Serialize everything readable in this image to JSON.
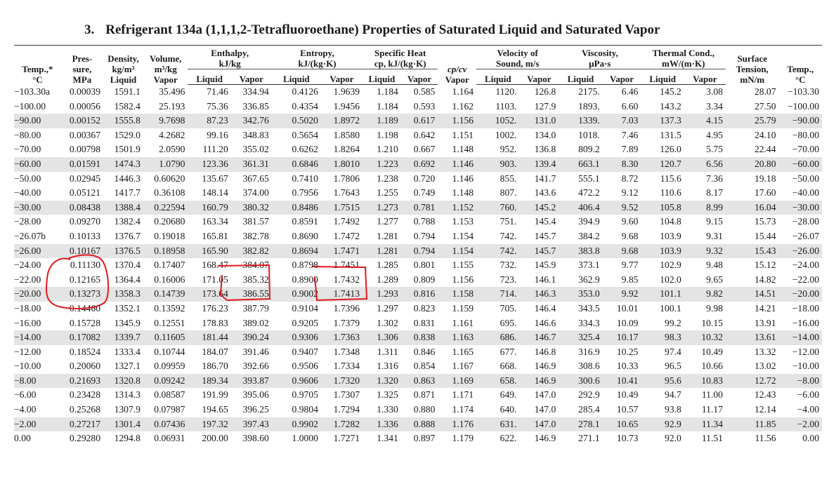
{
  "title": {
    "mark": "3.",
    "text": "Refrigerant 134a (1,1,1,2-Tetrafluoroethane) Properties of Saturated Liquid and Saturated Vapor"
  },
  "header": {
    "temp": [
      "Temp.,*",
      "°C"
    ],
    "pressure": [
      "Pres-",
      "sure,",
      "MPa"
    ],
    "density": [
      "Density,",
      "kg/m³",
      "Liquid"
    ],
    "volume": [
      "Volume,",
      "m³/kg",
      "Vapor"
    ],
    "enthalpy": [
      "Enthalpy,",
      "kJ/kg"
    ],
    "entropy": [
      "Entropy,",
      "kJ/(kg·K)"
    ],
    "specific_heat": [
      "Specific Heat",
      "cp, kJ/(kg·K)"
    ],
    "cp_cv": [
      "cp/cv",
      "Vapor"
    ],
    "velocity": [
      "Velocity of",
      "Sound, m/s"
    ],
    "viscosity": [
      "Viscosity,",
      "μPa·s"
    ],
    "conductivity": [
      "Thermal Cond.,",
      "mW/(m·K)"
    ],
    "surface_tension": [
      "Surface",
      "Tension,",
      "mN/m"
    ],
    "temp_right": [
      "Temp.,",
      "°C"
    ],
    "liquid": "Liquid",
    "vapor": "Vapor"
  },
  "rows": [
    [
      "−103.30a",
      "0.00039",
      "1591.1",
      "35.496",
      "71.46",
      "334.94",
      "0.4126",
      "1.9639",
      "1.184",
      "0.585",
      "1.164",
      "1120.",
      "126.8",
      "2175.",
      "6.46",
      "145.2",
      "3.08",
      "28.07",
      "−103.30"
    ],
    [
      "−100.00",
      "0.00056",
      "1582.4",
      "25.193",
      "75.36",
      "336.85",
      "0.4354",
      "1.9456",
      "1.184",
      "0.593",
      "1.162",
      "1103.",
      "127.9",
      "1893.",
      "6.60",
      "143.2",
      "3.34",
      "27.50",
      "−100.00"
    ],
    [
      "−90.00",
      "0.00152",
      "1555.8",
      "9.7698",
      "87.23",
      "342.76",
      "0.5020",
      "1.8972",
      "1.189",
      "0.617",
      "1.156",
      "1052.",
      "131.0",
      "1339.",
      "7.03",
      "137.3",
      "4.15",
      "25.79",
      "−90.00"
    ],
    [
      "−80.00",
      "0.00367",
      "1529.0",
      "4.2682",
      "99.16",
      "348.83",
      "0.5654",
      "1.8580",
      "1.198",
      "0.642",
      "1.151",
      "1002.",
      "134.0",
      "1018.",
      "7.46",
      "131.5",
      "4.95",
      "24.10",
      "−80.00"
    ],
    [
      "−70.00",
      "0.00798",
      "1501.9",
      "2.0590",
      "111.20",
      "355.02",
      "0.6262",
      "1.8264",
      "1.210",
      "0.667",
      "1.148",
      "952.",
      "136.8",
      "809.2",
      "7.89",
      "126.0",
      "5.75",
      "22.44",
      "−70.00"
    ],
    [
      "−60.00",
      "0.01591",
      "1474.3",
      "1.0790",
      "123.36",
      "361.31",
      "0.6846",
      "1.8010",
      "1.223",
      "0.692",
      "1.146",
      "903.",
      "139.4",
      "663.1",
      "8.30",
      "120.7",
      "6.56",
      "20.80",
      "−60.00"
    ],
    [
      "−50.00",
      "0.02945",
      "1446.3",
      "0.60620",
      "135.67",
      "367.65",
      "0.7410",
      "1.7806",
      "1.238",
      "0.720",
      "1.146",
      "855.",
      "141.7",
      "555.1",
      "8.72",
      "115.6",
      "7.36",
      "19.18",
      "−50.00"
    ],
    [
      "−40.00",
      "0.05121",
      "1417.7",
      "0.36108",
      "148.14",
      "374.00",
      "0.7956",
      "1.7643",
      "1.255",
      "0.749",
      "1.148",
      "807.",
      "143.6",
      "472.2",
      "9.12",
      "110.6",
      "8.17",
      "17.60",
      "−40.00"
    ],
    [
      "−30.00",
      "0.08438",
      "1388.4",
      "0.22594",
      "160.79",
      "380.32",
      "0.8486",
      "1.7515",
      "1.273",
      "0.781",
      "1.152",
      "760.",
      "145.2",
      "406.4",
      "9.52",
      "105.8",
      "8.99",
      "16.04",
      "−30.00"
    ],
    [
      "−28.00",
      "0.09270",
      "1382.4",
      "0.20680",
      "163.34",
      "381.57",
      "0.8591",
      "1.7492",
      "1.277",
      "0.788",
      "1.153",
      "751.",
      "145.4",
      "394.9",
      "9.60",
      "104.8",
      "9.15",
      "15.73",
      "−28.00"
    ],
    [
      "−26.07b",
      "0.10133",
      "1376.7",
      "0.19018",
      "165.81",
      "382.78",
      "0.8690",
      "1.7472",
      "1.281",
      "0.794",
      "1.154",
      "742.",
      "145.7",
      "384.2",
      "9.68",
      "103.9",
      "9.31",
      "15.44",
      "−26.07"
    ],
    [
      "−26.00",
      "0.10167",
      "1376.5",
      "0.18958",
      "165.90",
      "382.82",
      "0.8694",
      "1.7471",
      "1.281",
      "0.794",
      "1.154",
      "742.",
      "145.7",
      "383.8",
      "9.68",
      "103.9",
      "9.32",
      "15.43",
      "−26.00"
    ],
    [
      "−24.00",
      "0.11130",
      "1370.4",
      "0.17407",
      "168.47",
      "384.07",
      "0.8798",
      "1.7451",
      "1.285",
      "0.801",
      "1.155",
      "732.",
      "145.9",
      "373.1",
      "9.77",
      "102.9",
      "9.48",
      "15.12",
      "−24.00"
    ],
    [
      "−22.00",
      "0.12165",
      "1364.4",
      "0.16006",
      "171.05",
      "385.32",
      "0.8900",
      "1.7432",
      "1.289",
      "0.809",
      "1.156",
      "723.",
      "146.1",
      "362.9",
      "9.85",
      "102.0",
      "9.65",
      "14.82",
      "−22.00"
    ],
    [
      "−20.00",
      "0.13273",
      "1358.3",
      "0.14739",
      "173.64",
      "386.55",
      "0.9002",
      "1.7413",
      "1.293",
      "0.816",
      "1.158",
      "714.",
      "146.3",
      "353.0",
      "9.92",
      "101.1",
      "9.82",
      "14.51",
      "−20.00"
    ],
    [
      "−18.00",
      "0.14460",
      "1352.1",
      "0.13592",
      "176.23",
      "387.79",
      "0.9104",
      "1.7396",
      "1.297",
      "0.823",
      "1.159",
      "705.",
      "146.4",
      "343.5",
      "10.01",
      "100.1",
      "9.98",
      "14.21",
      "−18.00"
    ],
    [
      "−16.00",
      "0.15728",
      "1345.9",
      "0.12551",
      "178.83",
      "389.02",
      "0.9205",
      "1.7379",
      "1.302",
      "0.831",
      "1.161",
      "695.",
      "146.6",
      "334.3",
      "10.09",
      "99.2",
      "10.15",
      "13.91",
      "−16.00"
    ],
    [
      "−14.00",
      "0.17082",
      "1339.7",
      "0.11605",
      "181.44",
      "390.24",
      "0.9306",
      "1.7363",
      "1.306",
      "0.838",
      "1.163",
      "686.",
      "146.7",
      "325.4",
      "10.17",
      "98.3",
      "10.32",
      "13.61",
      "−14.00"
    ],
    [
      "−12.00",
      "0.18524",
      "1333.4",
      "0.10744",
      "184.07",
      "391.46",
      "0.9407",
      "1.7348",
      "1.311",
      "0.846",
      "1.165",
      "677.",
      "146.8",
      "316.9",
      "10.25",
      "97.4",
      "10.49",
      "13.32",
      "−12.00"
    ],
    [
      "−10.00",
      "0.20060",
      "1327.1",
      "0.09959",
      "186.70",
      "392.66",
      "0.9506",
      "1.7334",
      "1.316",
      "0.854",
      "1.167",
      "668.",
      "146.9",
      "308.6",
      "10.33",
      "96.5",
      "10.66",
      "13.02",
      "−10.00"
    ],
    [
      "−8.00",
      "0.21693",
      "1320.8",
      "0.09242",
      "189.34",
      "393.87",
      "0.9606",
      "1.7320",
      "1.320",
      "0.863",
      "1.169",
      "658.",
      "146.9",
      "300.6",
      "10.41",
      "95.6",
      "10.83",
      "12.72",
      "−8.00"
    ],
    [
      "−6.00",
      "0.23428",
      "1314.3",
      "0.08587",
      "191.99",
      "395.06",
      "0.9705",
      "1.7307",
      "1.325",
      "0.871",
      "1.171",
      "649.",
      "147.0",
      "292.9",
      "10.49",
      "94.7",
      "11.00",
      "12.43",
      "−6.00"
    ],
    [
      "−4.00",
      "0.25268",
      "1307.9",
      "0.07987",
      "194.65",
      "396.25",
      "0.9804",
      "1.7294",
      "1.330",
      "0.880",
      "1.174",
      "640.",
      "147.0",
      "285.4",
      "10.57",
      "93.8",
      "11.17",
      "12.14",
      "−4.00"
    ],
    [
      "−2.00",
      "0.27217",
      "1301.4",
      "0.07436",
      "197.32",
      "397.43",
      "0.9902",
      "1.7282",
      "1.336",
      "0.888",
      "1.176",
      "631.",
      "147.0",
      "278.1",
      "10.65",
      "92.9",
      "11.34",
      "11.85",
      "−2.00"
    ],
    [
      "0.00",
      "0.29280",
      "1294.8",
      "0.06931",
      "200.00",
      "398.60",
      "1.0000",
      "1.7271",
      "1.341",
      "0.897",
      "1.179",
      "622.",
      "146.9",
      "271.1",
      "10.73",
      "92.0",
      "11.51",
      "11.56",
      "0.00"
    ]
  ],
  "shaded_rows": [
    2,
    5,
    8,
    11,
    14,
    17,
    20,
    23
  ],
  "annotation_color": "#e0191f"
}
